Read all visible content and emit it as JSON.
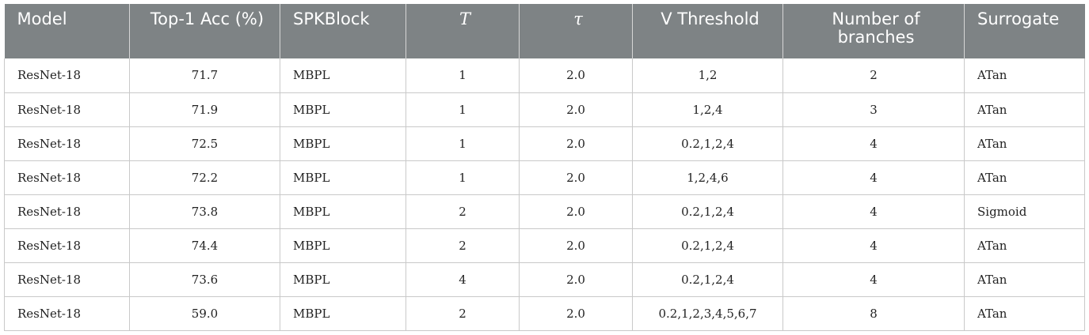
{
  "table": {
    "headers": [
      "Model",
      "Top-1 Acc (%)",
      "SPKBlock",
      "T",
      "τ",
      "V Threshold",
      "Number of branches",
      "Surrogate"
    ],
    "rows": [
      [
        "ResNet-18",
        "71.7",
        "MBPL",
        "1",
        "2.0",
        "1,2",
        "2",
        "ATan"
      ],
      [
        "ResNet-18",
        "71.9",
        "MBPL",
        "1",
        "2.0",
        "1,2,4",
        "3",
        "ATan"
      ],
      [
        "ResNet-18",
        "72.5",
        "MBPL",
        "1",
        "2.0",
        "0.2,1,2,4",
        "4",
        "ATan"
      ],
      [
        "ResNet-18",
        "72.2",
        "MBPL",
        "1",
        "2.0",
        "1,2,4,6",
        "4",
        "ATan"
      ],
      [
        "ResNet-18",
        "73.8",
        "MBPL",
        "2",
        "2.0",
        "0.2,1,2,4",
        "4",
        "Sigmoid"
      ],
      [
        "ResNet-18",
        "74.4",
        "MBPL",
        "2",
        "2.0",
        "0.2,1,2,4",
        "4",
        "ATan"
      ],
      [
        "ResNet-18",
        "73.6",
        "MBPL",
        "4",
        "2.0",
        "0.2,1,2,4",
        "4",
        "ATan"
      ],
      [
        "ResNet-18",
        "59.0",
        "MBPL",
        "2",
        "2.0",
        "0.2,1,2,3,4,5,6,7",
        "8",
        "ATan"
      ]
    ]
  },
  "colors": {
    "header_bg": "#7e8385",
    "header_text": "#ffffff",
    "grid_line": "#c9c9c9"
  }
}
